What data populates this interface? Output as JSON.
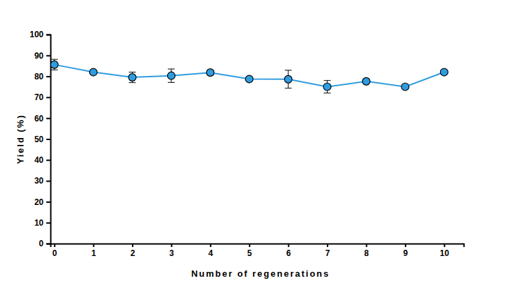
{
  "chart_data": {
    "type": "line",
    "x_label": "Number of regenerations",
    "y_label": "Yield (%)",
    "x": [
      0,
      1,
      2,
      3,
      4,
      5,
      6,
      7,
      8,
      9,
      10
    ],
    "values": [
      85.6,
      82.0,
      79.5,
      80.3,
      81.8,
      78.7,
      78.6,
      75.0,
      77.6,
      75.0,
      82.0
    ],
    "error": [
      2.5,
      1.0,
      2.5,
      3.2,
      1.0,
      0.8,
      4.3,
      3.0,
      1.0,
      0.5,
      0.8
    ],
    "xlim": [
      -0.1,
      10.5
    ],
    "ylim": [
      0,
      100
    ],
    "xticks": [
      0,
      1,
      2,
      3,
      4,
      5,
      6,
      7,
      8,
      9,
      10
    ],
    "yticks": [
      0,
      10,
      20,
      30,
      40,
      50,
      60,
      70,
      80,
      90,
      100
    ],
    "color": "#2f9ce0",
    "marker": "circle"
  }
}
